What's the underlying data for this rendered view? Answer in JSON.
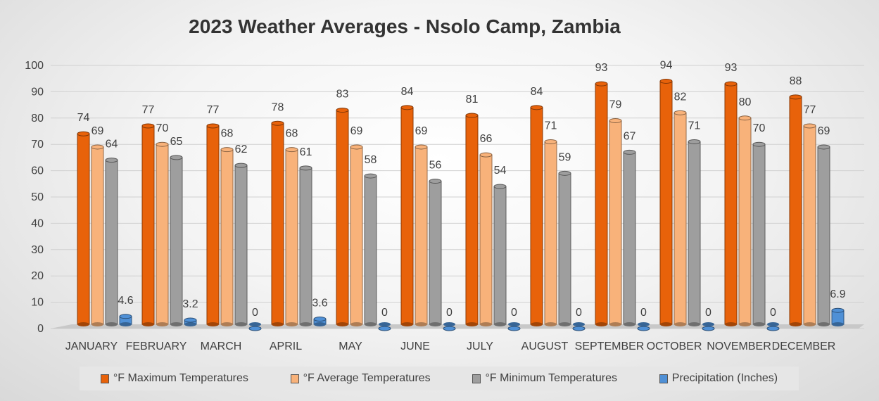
{
  "chart_data": {
    "type": "bar",
    "title": "2023 Weather Averages - Nsolo Camp, Zambia",
    "categories": [
      "JANUARY",
      "FEBRUARY",
      "MARCH",
      "APRIL",
      "MAY",
      "JUNE",
      "JULY",
      "AUGUST",
      "SEPTEMBER",
      "OCTOBER",
      "NOVEMBER",
      "DECEMBER"
    ],
    "series": [
      {
        "name": "°F Maximum Temperatures",
        "color": "#e8620a",
        "values": [
          74,
          77,
          77,
          78,
          83,
          84,
          81,
          84,
          93,
          94,
          93,
          88
        ],
        "labels": [
          "74",
          "77",
          "77",
          "78",
          "83",
          "84",
          "81",
          "84",
          "93",
          "94",
          "93",
          "88"
        ]
      },
      {
        "name": "°F Average Temperatures",
        "color": "#f8b27a",
        "values": [
          69,
          70,
          68,
          68,
          69,
          69,
          66,
          71,
          79,
          82,
          80,
          77
        ],
        "labels": [
          "69",
          "70",
          "68",
          "68",
          "69",
          "69",
          "66",
          "71",
          "79",
          "82",
          "80",
          "77"
        ]
      },
      {
        "name": "°F Minimum Temperatures",
        "color": "#9e9e9e",
        "values": [
          64,
          65,
          62,
          61,
          58,
          56,
          54,
          59,
          67,
          71,
          70,
          69
        ],
        "labels": [
          "64",
          "65",
          "62",
          "61",
          "58",
          "56",
          "54",
          "59",
          "67",
          "71",
          "70",
          "69"
        ]
      },
      {
        "name": "Precipitation (Inches)",
        "color": "#4f90d6",
        "values": [
          4.6,
          3.2,
          0,
          3.6,
          0,
          0,
          0,
          0,
          0,
          0,
          0,
          6.9
        ],
        "labels": [
          "4.6",
          "3.2",
          "0",
          "3.6",
          "0",
          "0",
          "0",
          "0",
          "0",
          "0",
          "0",
          "6.9"
        ]
      }
    ],
    "ylim": [
      0,
      100
    ],
    "yticks": [
      "0",
      "10",
      "20",
      "30",
      "40",
      "50",
      "60",
      "70",
      "80",
      "90",
      "100"
    ],
    "grid": true,
    "legend_position": "bottom"
  }
}
